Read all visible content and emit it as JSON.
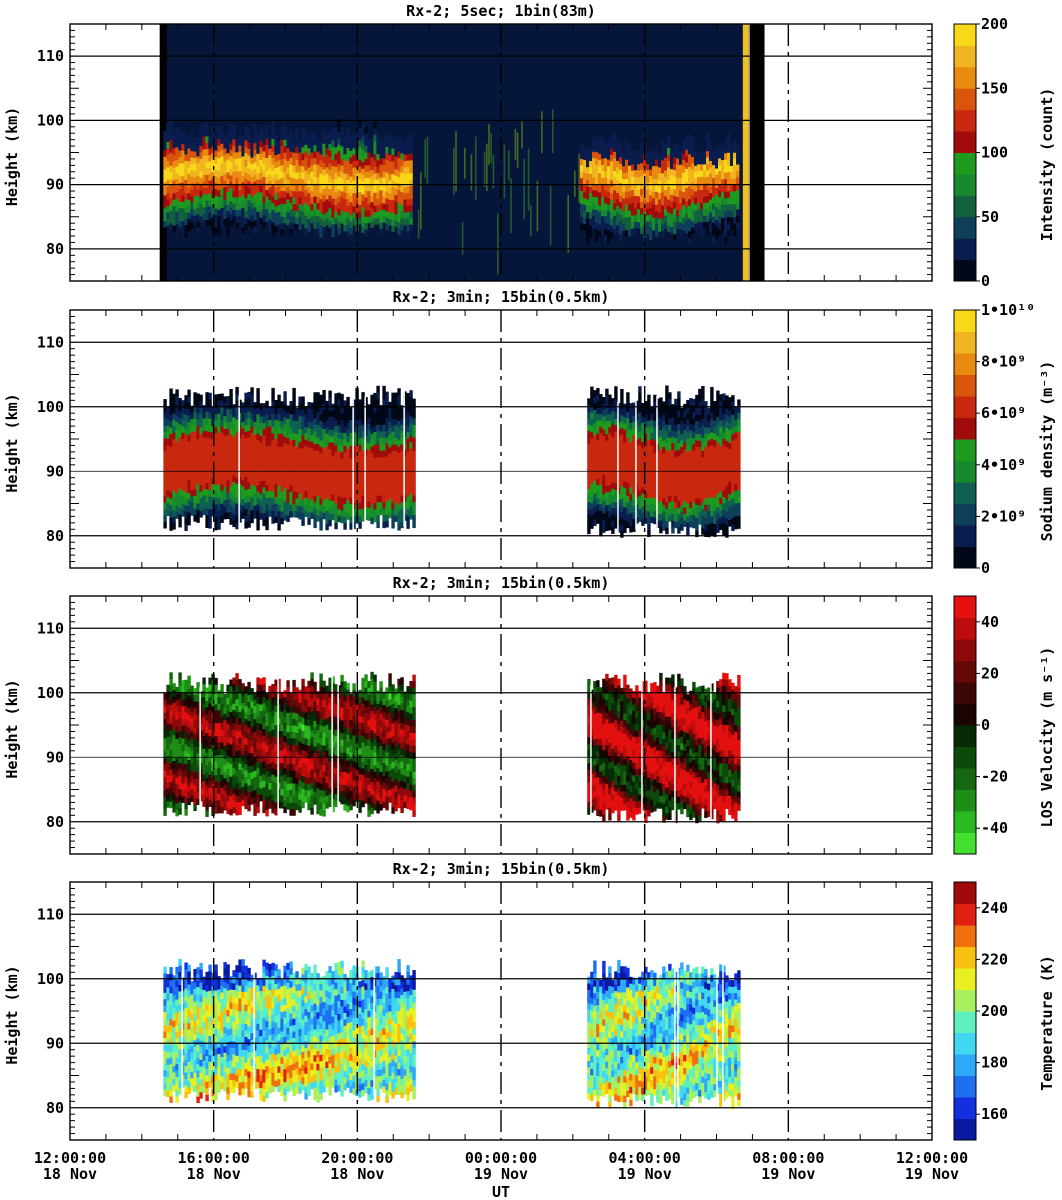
{
  "chart_data": [
    {
      "type": "heatmap",
      "title": "Rx-2;  5sec; 1bin(83m)",
      "ylabel": "Height (km)",
      "ylim": [
        75,
        115
      ],
      "y_ticks": [
        "80",
        "90",
        "100",
        "110"
      ],
      "colorbar": {
        "label": "Intensity (count)",
        "ticks": [
          "0",
          "50",
          "100",
          "150",
          "200"
        ],
        "colors": [
          "#000818",
          "#0a1d4f",
          "#0e3f5a",
          "#12603e",
          "#178a2e",
          "#1e9a1e",
          "#a00c0c",
          "#c8280e",
          "#d9540c",
          "#e98a10",
          "#f0b420",
          "#f8d818"
        ]
      },
      "data_coverage": [
        {
          "start_hour": 14.6,
          "end_hour": 21.5,
          "layer_km": [
            83,
            98
          ],
          "peak_km": 91
        },
        {
          "start_hour": 21.5,
          "end_hour": 2.2,
          "layer_km": [
            0,
            0
          ],
          "peak_km": 0
        },
        {
          "start_hour": 2.2,
          "end_hour": 6.6,
          "layer_km": [
            82,
            96
          ],
          "peak_km": 91
        }
      ],
      "record_span_hours": [
        14.5,
        6.9
      ]
    },
    {
      "type": "heatmap",
      "title": "Rx-2; 3min; 15bin(0.5km)",
      "ylabel": "Height (km)",
      "ylim": [
        75,
        115
      ],
      "y_ticks": [
        "80",
        "90",
        "100",
        "110"
      ],
      "colorbar": {
        "label": "Sodium density (m⁻³)",
        "ticks": [
          "0",
          "2•10⁹",
          "4•10⁹",
          "6•10⁹",
          "8•10⁹",
          "1•10¹⁰"
        ],
        "colors": [
          "#000818",
          "#0a1d4f",
          "#0e3f5a",
          "#0f6050",
          "#178a2e",
          "#1e9a1e",
          "#a00c0c",
          "#c8280e",
          "#d9540c",
          "#e98a10",
          "#f0b420",
          "#f8d818"
        ]
      },
      "data_coverage": [
        {
          "start_hour": 14.6,
          "end_hour": 21.6,
          "layer_km": [
            82,
            101
          ],
          "peak_km": 90
        },
        {
          "start_hour": 2.4,
          "end_hour": 6.6,
          "layer_km": [
            81,
            101
          ],
          "peak_km": 90
        }
      ]
    },
    {
      "type": "heatmap",
      "title": "Rx-2; 3min; 15bin(0.5km)",
      "ylabel": "Height (km)",
      "ylim": [
        75,
        115
      ],
      "y_ticks": [
        "80",
        "90",
        "100",
        "110"
      ],
      "colorbar": {
        "label": "LOS Velocity (m s⁻¹)",
        "ticks": [
          "-40",
          "-20",
          "0",
          "20",
          "40"
        ],
        "range": [
          -50,
          50
        ],
        "colors": [
          "#44e030",
          "#2cb820",
          "#1e8e16",
          "#156810",
          "#0c4a0a",
          "#062a06",
          "#1a0404",
          "#3c0606",
          "#640808",
          "#8e0a0a",
          "#bd0c0c",
          "#e41010"
        ]
      },
      "data_coverage": [
        {
          "start_hour": 14.6,
          "end_hour": 21.6,
          "layer_km": [
            82,
            101
          ],
          "peak_km": 90
        },
        {
          "start_hour": 2.4,
          "end_hour": 6.6,
          "layer_km": [
            81,
            101
          ],
          "peak_km": 90
        }
      ]
    },
    {
      "type": "heatmap",
      "title": "Rx-2; 3min; 15bin(0.5km)",
      "ylabel": "Height (km)",
      "ylim": [
        75,
        115
      ],
      "y_ticks": [
        "80",
        "90",
        "100",
        "110"
      ],
      "xlabel": "UT",
      "x_ticks": [
        "12:00:00",
        "16:00:00",
        "20:00:00",
        "00:00:00",
        "04:00:00",
        "08:00:00",
        "12:00:00"
      ],
      "x_dates": [
        "18 Nov",
        "18 Nov",
        "18 Nov",
        "19 Nov",
        "19 Nov",
        "19 Nov",
        "19 Nov"
      ],
      "colorbar": {
        "label": "Temperature (K)",
        "ticks": [
          "160",
          "180",
          "200",
          "220",
          "240"
        ],
        "range": [
          150,
          250
        ],
        "colors": [
          "#0a1aa0",
          "#1230e0",
          "#1e70f0",
          "#30a8f8",
          "#40d8f0",
          "#60f0c0",
          "#a8f060",
          "#e8f020",
          "#f8c010",
          "#f07010",
          "#e02010",
          "#a00a0a"
        ]
      },
      "data_coverage": [
        {
          "start_hour": 14.6,
          "end_hour": 21.6,
          "layer_km": [
            82,
            101
          ],
          "peak_km": 90
        },
        {
          "start_hour": 2.4,
          "end_hour": 6.6,
          "layer_km": [
            81,
            101
          ],
          "peak_km": 90
        }
      ]
    }
  ]
}
